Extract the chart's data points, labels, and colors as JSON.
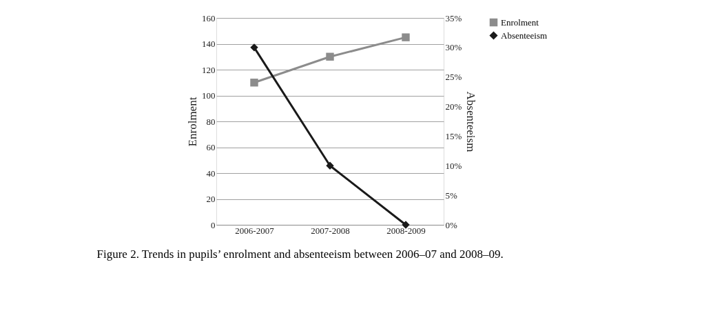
{
  "chart_data": {
    "type": "line",
    "categories": [
      "2006-2007",
      "2007-2008",
      "2008-2009"
    ],
    "ylabel": "Enrolment",
    "y2label": "Absenteeism",
    "ylim": [
      0,
      160
    ],
    "yticks": [
      0,
      20,
      40,
      60,
      80,
      100,
      120,
      140,
      160
    ],
    "y2lim": [
      0,
      35
    ],
    "y2ticks": [
      {
        "value": 0,
        "label": "0%"
      },
      {
        "value": 5,
        "label": "5%"
      },
      {
        "value": 10,
        "label": "10%"
      },
      {
        "value": 15,
        "label": "15%"
      },
      {
        "value": 20,
        "label": "20%"
      },
      {
        "value": 25,
        "label": "25%"
      },
      {
        "value": 30,
        "label": "30%"
      },
      {
        "value": 35,
        "label": "35%"
      }
    ],
    "series": [
      {
        "name": "Enrolment",
        "color": "#8c8c8c",
        "marker": "square",
        "values": [
          110,
          130,
          145
        ]
      },
      {
        "name": "Absenteeism",
        "color": "#1a1a1a",
        "marker": "diamond",
        "axis": "y2",
        "values": [
          30,
          10,
          0
        ]
      }
    ],
    "grid": "y",
    "legend": "right",
    "line_style": "solid",
    "annotations": [
      "Figure 2.   Trends in pupils’ enrolment and absenteeism between 2006–07 and 2008–09."
    ]
  }
}
